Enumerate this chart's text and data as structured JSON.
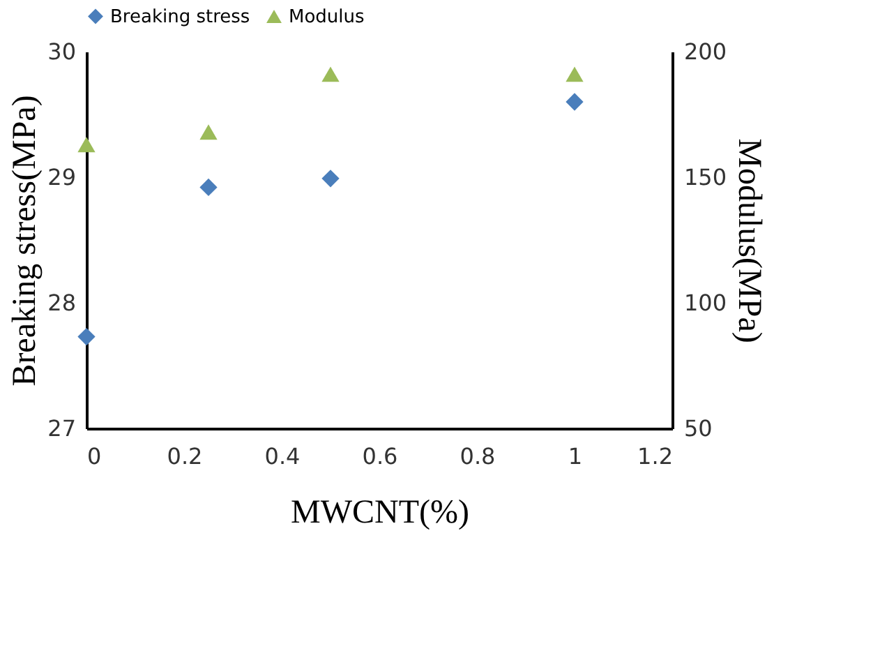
{
  "chart_data": {
    "type": "scatter",
    "xlabel": "MWCNT(%)",
    "ylabel": "Breaking stress(MPa)",
    "y2label": "Modulus(MPa)",
    "x": [
      0,
      0.25,
      0.5,
      1
    ],
    "series": [
      {
        "name": "Breaking stress",
        "color": "#4a7ebb",
        "marker": "diamond",
        "values": [
          27.73,
          28.92,
          28.99,
          29.6
        ]
      },
      {
        "name": "Modulus",
        "color": "#9bbb59",
        "marker": "triangle",
        "axis": "y2",
        "values": [
          163,
          168,
          191,
          191
        ]
      }
    ],
    "xlim": [
      0,
      1.2
    ],
    "xticks": [
      0,
      0.2,
      0.4,
      0.6,
      0.8,
      1,
      1.2
    ],
    "ylim": [
      27,
      30
    ],
    "yticks": [
      27,
      28,
      29,
      30
    ],
    "y2lim": [
      50,
      200
    ],
    "y2ticks": [
      50,
      100,
      150,
      200
    ],
    "legend": "top",
    "grid": false
  }
}
